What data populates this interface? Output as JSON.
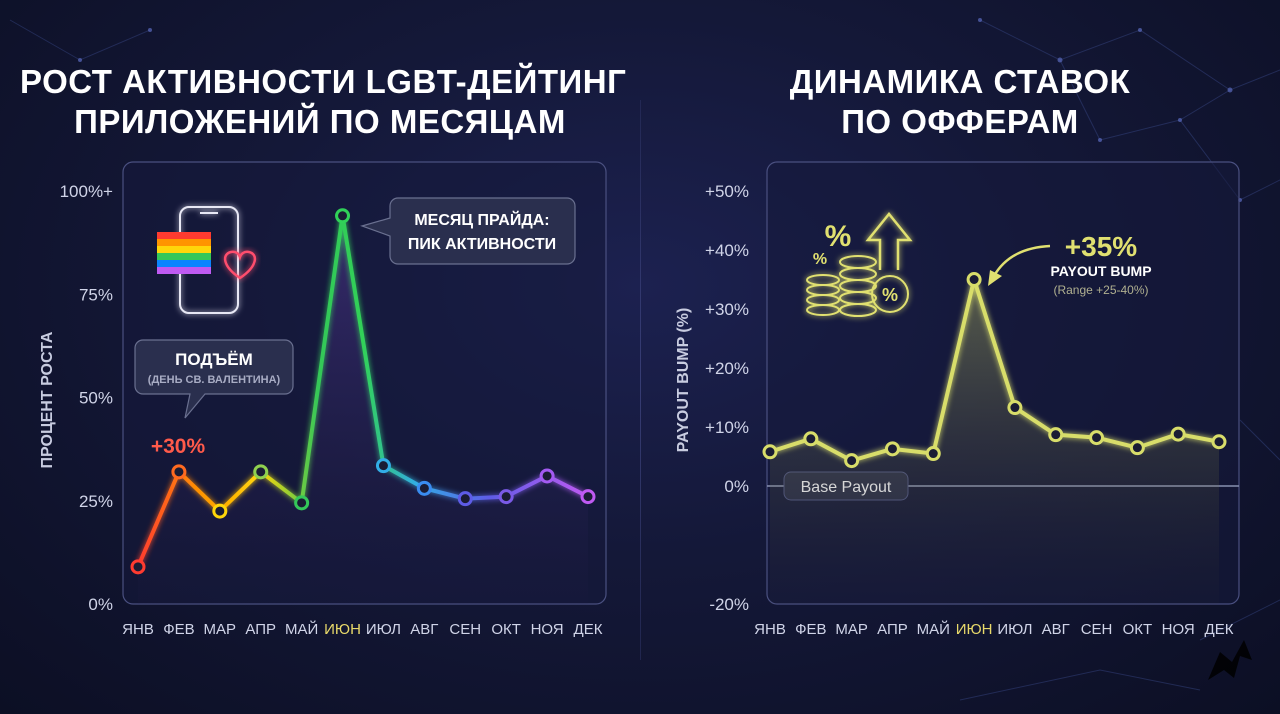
{
  "left_title": {
    "line1": "РОСТ АКТИВНОСТИ LGBT-ДЕЙТИНГ",
    "line2": "ПРИЛОЖЕНИЙ ПО МЕСЯЦАМ"
  },
  "right_title": {
    "line1": "ДИНАМИКА СТАВОК",
    "line2": "ПО ОФФЕРАМ"
  },
  "left_callouts": {
    "rise_title": "ПОДЪЁМ",
    "rise_sub": "(ДЕНЬ СВ. ВАЛЕНТИНА)",
    "rise_value": "+30%",
    "pride_line1": "МЕСЯЦ ПРАЙДА:",
    "pride_line2": "ПИК АКТИВНОСТИ"
  },
  "right_callouts": {
    "peak_value": "+35%",
    "peak_title": "PAYOUT BUMP",
    "peak_range": "(Range +25-40%)",
    "base_label": "Base Payout",
    "percent_icon_big": "%",
    "percent_icon_small": "%",
    "percent_coin": "%"
  },
  "icons": [
    "phone-icon",
    "rainbow-flag-icon",
    "heart-icon",
    "coins-stack-icon",
    "arrow-up-icon",
    "logo-icon"
  ],
  "colors": {
    "highlight_month": "#e8d96a",
    "right_series": "#d8dd6a",
    "peak_red": "#ff5a4a",
    "base_line": "#8890b0"
  },
  "chart_data": [
    {
      "type": "line",
      "title": "РОСТ АКТИВНОСТИ LGBT-ДЕЙТИНГ ПРИЛОЖЕНИЙ ПО МЕСЯЦАМ",
      "xlabel": "",
      "ylabel": "ПРОЦЕНТ РОСТА",
      "categories": [
        "ЯНВ",
        "ФЕВ",
        "МАР",
        "АПР",
        "МАЙ",
        "ИЮН",
        "ИЮЛ",
        "АВГ",
        "СЕН",
        "ОКТ",
        "НОЯ",
        "ДЕК"
      ],
      "highlight_category": "ИЮН",
      "values": [
        9,
        32,
        22.5,
        32,
        24.5,
        94,
        33.5,
        28,
        25.5,
        26,
        31,
        26
      ],
      "ylim": [
        0,
        100
      ],
      "yticks": [
        0,
        25,
        50,
        75,
        100
      ],
      "ytick_labels": [
        "0%",
        "25%",
        "50%",
        "75%",
        "100%+"
      ],
      "grid": false,
      "style": "rainbow gradient line"
    },
    {
      "type": "line",
      "title": "ДИНАМИКА СТАВОК ПО ОФФЕРАМ",
      "xlabel": "",
      "ylabel": "PAYOUT BUMP (%)",
      "categories": [
        "ЯНВ",
        "ФЕВ",
        "МАР",
        "АПР",
        "МАЙ",
        "ИЮН",
        "ИЮЛ",
        "АВГ",
        "СЕН",
        "ОКТ",
        "НОЯ",
        "ДЕК"
      ],
      "highlight_category": "ИЮН",
      "values": [
        5.8,
        8,
        4.3,
        6.3,
        5.5,
        35,
        13.3,
        8.7,
        8.2,
        6.5,
        8.8,
        7.5
      ],
      "ylim": [
        -20,
        50
      ],
      "yticks": [
        -20,
        0,
        10,
        20,
        30,
        40,
        50
      ],
      "ytick_labels": [
        "-20%",
        "0%",
        "+10%",
        "+20%",
        "+30%",
        "+40%",
        "+50%"
      ],
      "reference_line": 0,
      "grid": false
    }
  ]
}
